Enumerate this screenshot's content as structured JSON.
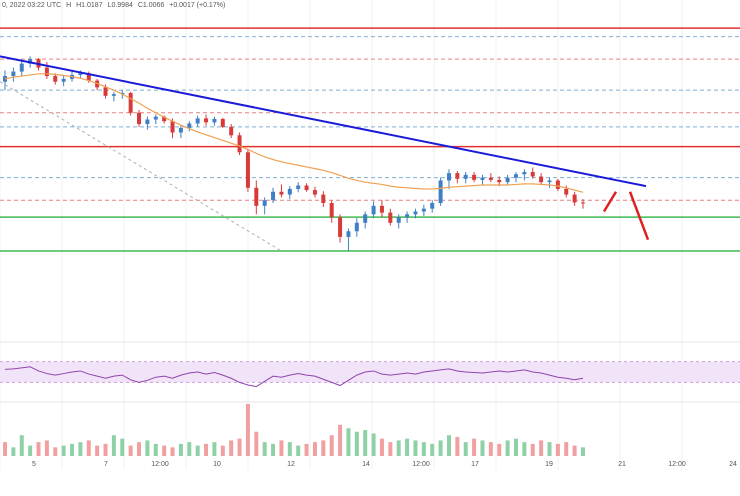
{
  "header": {
    "date_time": "0, 2022 03:22 UTC",
    "ohlc_prefix": "H",
    "high": "H1.0187",
    "low": "L0.9984",
    "close": "C1.0066",
    "change": "+0.0017 (+0.17%)"
  },
  "colors": {
    "up_candle": "#3f7fc4",
    "down_candle": "#d83a3a",
    "trendline": "#1a1ad8",
    "moving_average": "#f0a050",
    "resistance": "#e03030",
    "support": "#3fb950",
    "rsi_line": "#8e44ad",
    "rsi_band": "#f2e4f8",
    "volume_up": "#8fd1a6",
    "volume_down": "#f0a0a0"
  },
  "chart_data": {
    "type": "candlestick",
    "title": "",
    "x_tick_labels": [
      "5",
      "7",
      "12:00",
      "10",
      "12",
      "14",
      "12:00",
      "17",
      "19",
      "21",
      "12:00",
      "24"
    ],
    "price_axis_range": [
      0.996,
      1.052
    ],
    "candles_ohlc": [
      [
        1.04,
        1.042,
        1.0385,
        1.041
      ],
      [
        1.041,
        1.0425,
        1.04,
        1.0418
      ],
      [
        1.0418,
        1.044,
        1.041,
        1.0432
      ],
      [
        1.0432,
        1.0445,
        1.0425,
        1.044
      ],
      [
        1.044,
        1.0442,
        1.042,
        1.0425
      ],
      [
        1.0425,
        1.0435,
        1.0405,
        1.041
      ],
      [
        1.041,
        1.0415,
        1.0395,
        1.04
      ],
      [
        1.04,
        1.0412,
        1.0392,
        1.0405
      ],
      [
        1.0405,
        1.0418,
        1.04,
        1.0412
      ],
      [
        1.0412,
        1.042,
        1.0405,
        1.0415
      ],
      [
        1.0415,
        1.0418,
        1.0398,
        1.0402
      ],
      [
        1.0402,
        1.0405,
        1.0385,
        1.039
      ],
      [
        1.039,
        1.0395,
        1.037,
        1.0375
      ],
      [
        1.0375,
        1.0382,
        1.0365,
        1.0378
      ],
      [
        1.0378,
        1.0385,
        1.037,
        1.038
      ],
      [
        1.038,
        1.0382,
        1.034,
        1.0345
      ],
      [
        1.0345,
        1.035,
        1.032,
        1.0325
      ],
      [
        1.0325,
        1.0338,
        1.0315,
        1.0333
      ],
      [
        1.0333,
        1.0342,
        1.0325,
        1.0338
      ],
      [
        1.0338,
        1.034,
        1.0326,
        1.033
      ],
      [
        1.033,
        1.0335,
        1.03,
        1.031
      ],
      [
        1.031,
        1.0322,
        1.03,
        1.0318
      ],
      [
        1.0318,
        1.033,
        1.0312,
        1.0326
      ],
      [
        1.0326,
        1.034,
        1.032,
        1.0335
      ],
      [
        1.0335,
        1.0342,
        1.0322,
        1.0328
      ],
      [
        1.0328,
        1.0338,
        1.0322,
        1.0334
      ],
      [
        1.0334,
        1.0336,
        1.0318,
        1.032
      ],
      [
        1.032,
        1.0325,
        1.03,
        1.0305
      ],
      [
        1.0305,
        1.031,
        1.027,
        1.0275
      ],
      [
        1.0275,
        1.028,
        1.0205,
        1.0212
      ],
      [
        1.0212,
        1.0225,
        1.0165,
        1.018
      ],
      [
        1.018,
        1.0195,
        1.0165,
        1.019
      ],
      [
        1.019,
        1.0212,
        1.0185,
        1.0205
      ],
      [
        1.0205,
        1.0218,
        1.0195,
        1.02
      ],
      [
        1.02,
        1.0215,
        1.0192,
        1.021
      ],
      [
        1.021,
        1.0222,
        1.0204,
        1.0216
      ],
      [
        1.0216,
        1.022,
        1.0205,
        1.0208
      ],
      [
        1.0208,
        1.0214,
        1.0195,
        1.02
      ],
      [
        1.02,
        1.0206,
        1.0178,
        1.0185
      ],
      [
        1.0185,
        1.019,
        1.015,
        1.016
      ],
      [
        1.016,
        1.0165,
        1.0115,
        1.0125
      ],
      [
        1.0125,
        1.014,
        1.01,
        1.0135
      ],
      [
        1.0135,
        1.0158,
        1.0125,
        1.015
      ],
      [
        1.015,
        1.017,
        1.014,
        1.0165
      ],
      [
        1.0165,
        1.0188,
        1.0158,
        1.018
      ],
      [
        1.018,
        1.019,
        1.016,
        1.0168
      ],
      [
        1.0168,
        1.0175,
        1.0145,
        1.015
      ],
      [
        1.015,
        1.0165,
        1.014,
        1.016
      ],
      [
        1.016,
        1.017,
        1.015,
        1.0165
      ],
      [
        1.0165,
        1.0175,
        1.0158,
        1.017
      ],
      [
        1.017,
        1.0182,
        1.0162,
        1.0175
      ],
      [
        1.0175,
        1.019,
        1.0168,
        1.0185
      ],
      [
        1.0185,
        1.023,
        1.018,
        1.0225
      ],
      [
        1.0225,
        1.0245,
        1.021,
        1.0238
      ],
      [
        1.0238,
        1.0242,
        1.022,
        1.0228
      ],
      [
        1.0228,
        1.024,
        1.022,
        1.0235
      ],
      [
        1.0235,
        1.024,
        1.0222,
        1.0226
      ],
      [
        1.0226,
        1.0235,
        1.0218,
        1.023
      ],
      [
        1.023,
        1.0238,
        1.0222,
        1.0226
      ],
      [
        1.0226,
        1.0232,
        1.0215,
        1.0222
      ],
      [
        1.0222,
        1.0235,
        1.0218,
        1.023
      ],
      [
        1.023,
        1.024,
        1.0222,
        1.0236
      ],
      [
        1.0236,
        1.0245,
        1.0225,
        1.024
      ],
      [
        1.024,
        1.0248,
        1.0228,
        1.0232
      ],
      [
        1.0232,
        1.0238,
        1.0218,
        1.0222
      ],
      [
        1.0222,
        1.023,
        1.0212,
        1.0225
      ],
      [
        1.0225,
        1.0228,
        1.0206,
        1.021
      ],
      [
        1.021,
        1.0216,
        1.0195,
        1.02
      ],
      [
        1.02,
        1.0205,
        1.018,
        1.0186
      ],
      [
        1.0186,
        1.0192,
        1.0175,
        1.0185
      ]
    ],
    "moving_average": [
      1.0405,
      1.0408,
      1.041,
      1.0412,
      1.0414,
      1.0414,
      1.0413,
      1.0411,
      1.0409,
      1.0406,
      1.0402,
      1.0397,
      1.0391,
      1.0385,
      1.0378,
      1.037,
      1.0362,
      1.0353,
      1.0345,
      1.0337,
      1.033,
      1.0323,
      1.0317,
      1.0311,
      1.0306,
      1.0301,
      1.0296,
      1.0291,
      1.0286,
      1.028,
      1.0273,
      1.0267,
      1.0262,
      1.0258,
      1.0255,
      1.0252,
      1.0249,
      1.0246,
      1.0243,
      1.0239,
      1.0234,
      1.0229,
      1.0225,
      1.0222,
      1.022,
      1.0218,
      1.0215,
      1.0213,
      1.0212,
      1.0211,
      1.021,
      1.021,
      1.0211,
      1.0213,
      1.0214,
      1.0215,
      1.0216,
      1.0217,
      1.0217,
      1.0217,
      1.0217,
      1.0218,
      1.0219,
      1.0219,
      1.0218,
      1.0217,
      1.0215,
      1.0212,
      1.0208,
      1.0204
    ],
    "trendline": {
      "from_price": 1.0445,
      "to_price": 1.0215
    },
    "diagonal_dashed": {
      "from_price": 1.04,
      "to_price": 1.01
    },
    "resistance_levels": [
      1.0495,
      1.0285
    ],
    "support_levels": [
      1.016,
      1.01
    ],
    "dashed_levels_red": [
      1.044,
      1.0345,
      1.019
    ],
    "dashed_levels_blue": [
      1.048,
      1.0385,
      1.032,
      1.023
    ],
    "projection_path": [
      1.017,
      1.0205,
      1.012
    ],
    "rsi": {
      "range": [
        0,
        100
      ],
      "band": [
        30,
        70
      ],
      "values": [
        55,
        56,
        58,
        60,
        52,
        47,
        44,
        47,
        50,
        52,
        46,
        42,
        38,
        42,
        44,
        35,
        30,
        34,
        40,
        42,
        38,
        44,
        48,
        50,
        46,
        49,
        44,
        38,
        30,
        25,
        22,
        32,
        42,
        40,
        44,
        47,
        44,
        42,
        36,
        30,
        24,
        34,
        44,
        50,
        52,
        46,
        44,
        46,
        48,
        46,
        50,
        52,
        54,
        56,
        52,
        50,
        49,
        48,
        50,
        52,
        50,
        52,
        54,
        50,
        48,
        44,
        40,
        38,
        35,
        38
      ]
    },
    "volume": [
      8,
      5,
      12,
      6,
      8,
      9,
      5,
      6,
      7,
      8,
      9,
      6,
      7,
      12,
      10,
      6,
      8,
      9,
      7,
      6,
      5,
      7,
      8,
      6,
      7,
      8,
      6,
      9,
      10,
      30,
      14,
      8,
      7,
      9,
      8,
      6,
      7,
      8,
      9,
      12,
      18,
      16,
      14,
      15,
      13,
      10,
      8,
      9,
      10,
      9,
      8,
      7,
      9,
      12,
      11,
      8,
      10,
      9,
      8,
      7,
      9,
      10,
      8,
      7,
      9,
      8,
      7,
      8,
      6,
      5
    ],
    "volume_up_flags": [
      0,
      1,
      1,
      1,
      0,
      0,
      0,
      1,
      1,
      1,
      0,
      0,
      0,
      1,
      1,
      0,
      0,
      1,
      1,
      0,
      0,
      1,
      1,
      1,
      0,
      1,
      0,
      0,
      0,
      0,
      0,
      1,
      1,
      0,
      1,
      1,
      0,
      0,
      0,
      0,
      0,
      1,
      1,
      1,
      1,
      0,
      0,
      1,
      1,
      1,
      1,
      1,
      1,
      1,
      0,
      1,
      0,
      1,
      0,
      0,
      1,
      1,
      1,
      0,
      0,
      1,
      0,
      0,
      0,
      1
    ]
  }
}
